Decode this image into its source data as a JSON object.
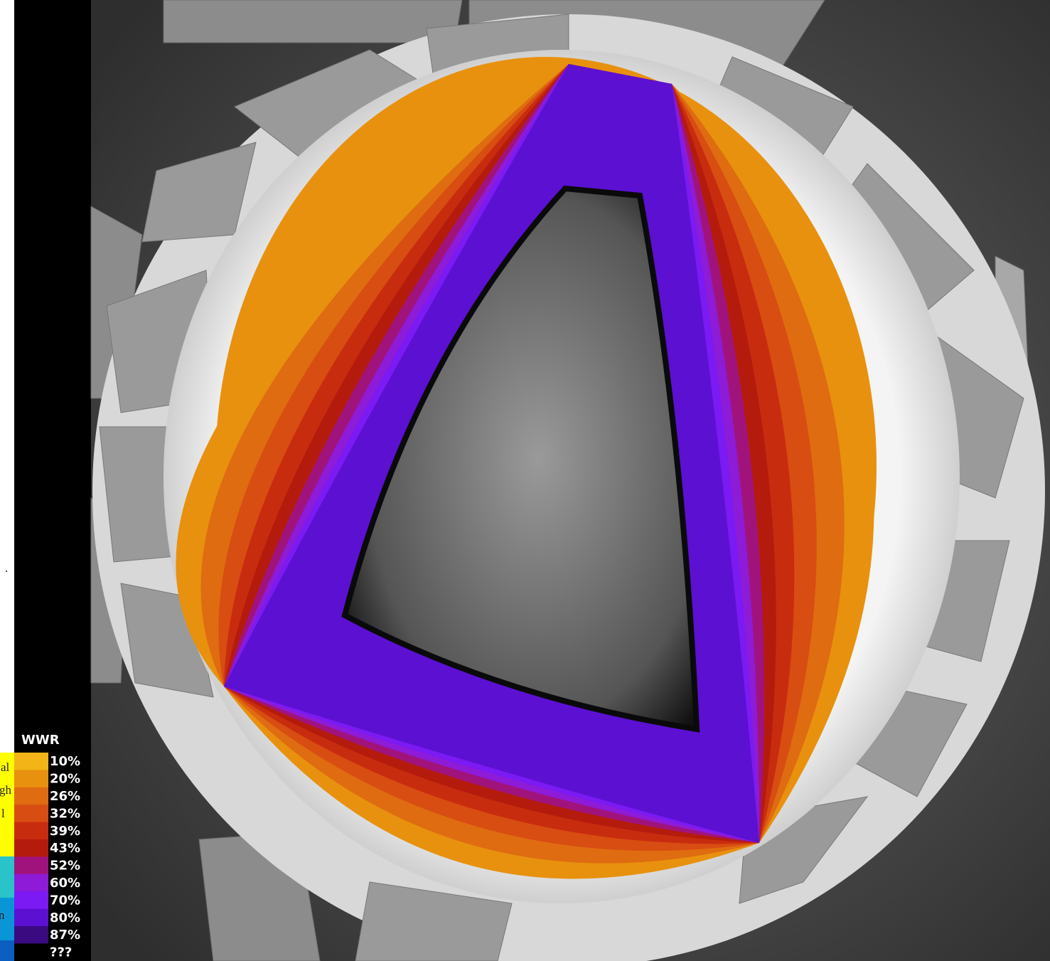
{
  "legend": {
    "title": "WWR",
    "entries": [
      {
        "label": "10%",
        "color": "#f2b416"
      },
      {
        "label": "20%",
        "color": "#e8910f"
      },
      {
        "label": "26%",
        "color": "#df6c11"
      },
      {
        "label": "32%",
        "color": "#d84d12"
      },
      {
        "label": "39%",
        "color": "#c82c0f"
      },
      {
        "label": "43%",
        "color": "#b51b0c"
      },
      {
        "label": "52%",
        "color": "#a1137c"
      },
      {
        "label": "60%",
        "color": "#8d1bd8"
      },
      {
        "label": "70%",
        "color": "#7b1af2"
      },
      {
        "label": "80%",
        "color": "#5c10d2"
      },
      {
        "label": "87%",
        "color": "#3a0a80"
      },
      {
        "label": "???",
        "color": "#000000"
      }
    ]
  },
  "side_text": [
    "al",
    "gh",
    "l",
    "n",
    "."
  ]
}
